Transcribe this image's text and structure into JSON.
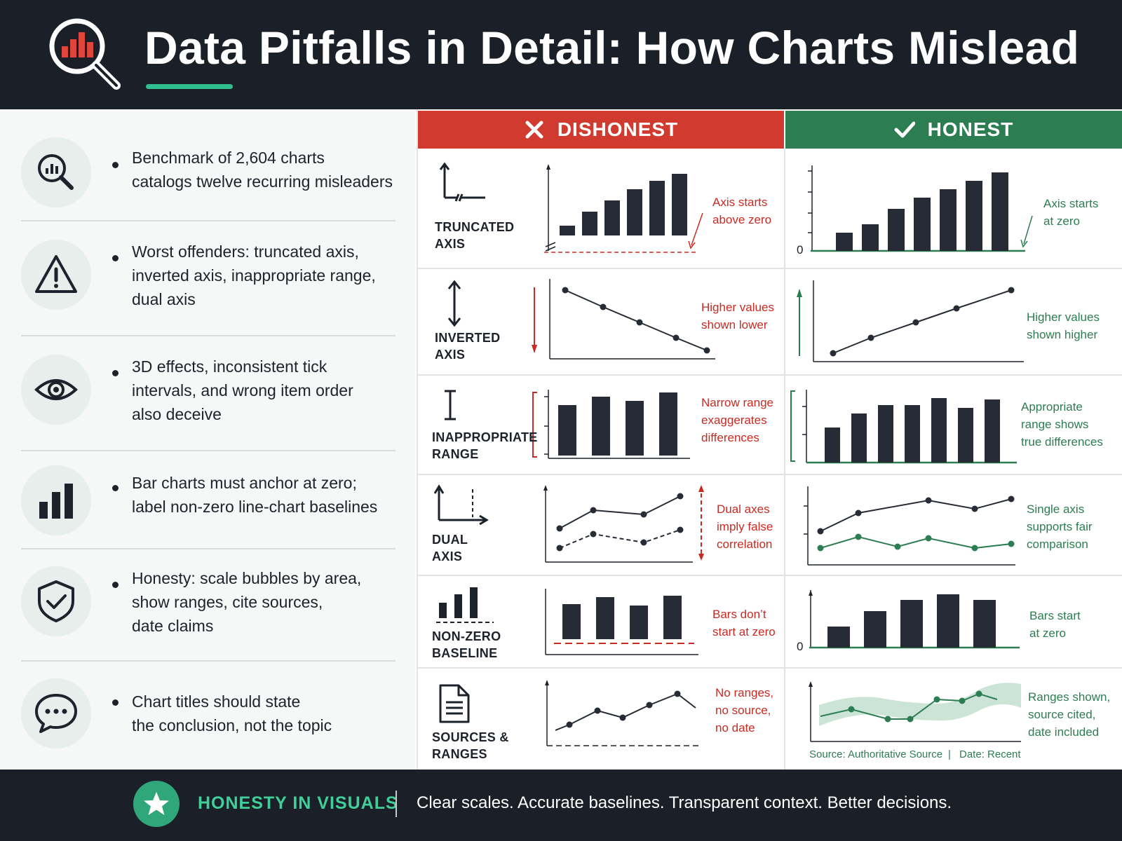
{
  "header": {
    "title": "Data Pitfalls in Detail: How Charts Mislead",
    "logo_icon": "magnifier-bar-chart-icon"
  },
  "colors": {
    "dark": "#1b1f28",
    "red": "#d13a2e",
    "green": "#2d7d52",
    "accent": "#2fbf8f"
  },
  "left_items": [
    {
      "icon": "search-chart-icon",
      "text": "Benchmark of 2,604 charts\ncatalogs twelve recurring misleaders"
    },
    {
      "icon": "warning-icon",
      "text": "Worst offenders: truncated axis,\ninverted axis, inappropriate range,\ndual axis"
    },
    {
      "icon": "eye-icon",
      "text": "3D effects, inconsistent tick\nintervals, and wrong item order\nalso deceive"
    },
    {
      "icon": "bar-chart-icon",
      "text": "Bar charts must anchor at zero;\nlabel non-zero line-chart baselines"
    },
    {
      "icon": "shield-check-icon",
      "text": "Honesty: scale bubbles by area,\nshow ranges, cite sources,\ndate claims"
    },
    {
      "icon": "chat-bubble-icon",
      "text": "Chart titles should state\nthe conclusion, not the topic"
    }
  ],
  "columns": {
    "dishonest": "DISHONEST",
    "honest": "HONEST"
  },
  "rows": [
    {
      "label": "TRUNCATED\nAXIS",
      "dishonest_note": "Axis starts\nabove zero",
      "honest_note": "Axis starts\nat zero",
      "zero_label": "0"
    },
    {
      "label": "INVERTED\nAXIS",
      "dishonest_note": "Higher values\nshown lower",
      "honest_note": "Higher values\nshown higher"
    },
    {
      "label": "INAPPROPRIATE\nRANGE",
      "dishonest_note": "Narrow range\nexaggerates\ndifferences",
      "honest_note": "Appropriate\nrange shows\ntrue differences"
    },
    {
      "label": "DUAL\nAXIS",
      "dishonest_note": "Dual axes\nimply false\ncorrelation",
      "honest_note": "Single axis\nsupports fair\ncomparison"
    },
    {
      "label": "NON-ZERO\nBASELINE",
      "dishonest_note": "Bars don’t\nstart at zero",
      "honest_note": "Bars start\nat zero",
      "zero_label": "0"
    },
    {
      "label": "SOURCES &\nRANGES",
      "dishonest_note": "No ranges,\nno source,\nno date",
      "honest_note": "Ranges shown,\nsource cited,\ndate included",
      "source": "Source: Authoritative Source",
      "source_sep": "|",
      "date": "Date: Recent"
    }
  ],
  "footer": {
    "tag": "HONESTY IN VISUALS",
    "message": "Clear scales. Accurate baselines. Transparent context. Better decisions."
  }
}
